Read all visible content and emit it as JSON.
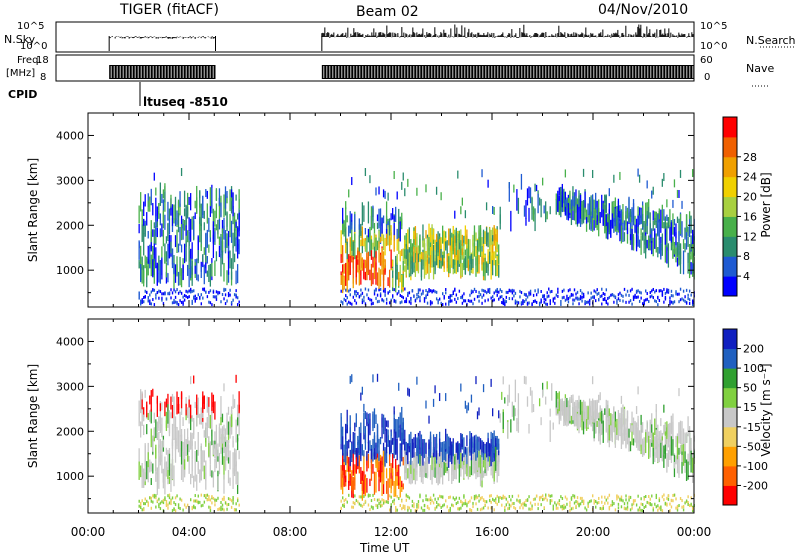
{
  "header": {
    "title": "TIGER (fitACF)",
    "beam": "Beam 02",
    "date": "04/Nov/2010"
  },
  "strips": {
    "nsky_label": "N.Sky",
    "nsky_ticks": [
      "10^5",
      "10^0"
    ],
    "nsearch_label": "N.Search",
    "nsearch_ticks": [
      "10^5",
      "10^0"
    ],
    "freq_label": "Freq.",
    "freq_unit": "[MHz]",
    "freq_ticks": [
      "18",
      "8"
    ],
    "nave_label": "Nave",
    "nave_ticks": [
      "60",
      "0"
    ],
    "cpid_label": "CPID",
    "cpid_text": "ltuseq -8510"
  },
  "axes": {
    "ylabel": "Slant Range [km]",
    "xlabel": "Time UT",
    "xticks": [
      "00:00",
      "04:00",
      "08:00",
      "12:00",
      "16:00",
      "20:00",
      "00:00"
    ],
    "yticks": [
      "1000",
      "2000",
      "3000",
      "4000"
    ]
  },
  "colorbars": {
    "power": {
      "label": "Power [dB]",
      "ticks": [
        "4",
        "8",
        "12",
        "16",
        "20",
        "24",
        "28"
      ],
      "colors": [
        "#0000ff",
        "#1e5ad2",
        "#2a8c6e",
        "#48b04a",
        "#a8d040",
        "#f0d000",
        "#f0a000",
        "#f06000",
        "#ff0000"
      ]
    },
    "velocity": {
      "label": "Velocity [m s⁻¹]",
      "ticks": [
        "-200",
        "-100",
        "-50",
        "-15",
        "15",
        "50",
        "100",
        "200"
      ],
      "colors": [
        "#ff0000",
        "#ff6000",
        "#ffa000",
        "#f0d060",
        "#c8c8c8",
        "#80d040",
        "#30a030",
        "#2060c0",
        "#1020c0"
      ]
    }
  },
  "chart_data": [
    {
      "type": "scatter",
      "title": "Power",
      "xlabel": "Time UT",
      "ylabel": "Slant Range [km]",
      "xlim": [
        0,
        24
      ],
      "ylim": [
        180,
        4500
      ],
      "data_blocks": [
        {
          "t_start": 2.0,
          "t_end": 6.0,
          "r_min": 200,
          "r_max": 3000
        },
        {
          "t_start": 10.0,
          "t_end": 24.0,
          "r_min": 200,
          "r_max": 3300
        }
      ]
    },
    {
      "type": "scatter",
      "title": "Velocity",
      "xlabel": "Time UT",
      "ylabel": "Slant Range [km]",
      "xlim": [
        0,
        24
      ],
      "ylim": [
        180,
        4500
      ],
      "data_blocks": [
        {
          "t_start": 2.0,
          "t_end": 6.0,
          "r_min": 200,
          "r_max": 3000
        },
        {
          "t_start": 10.0,
          "t_end": 24.0,
          "r_min": 200,
          "r_max": 3300
        }
      ]
    }
  ]
}
